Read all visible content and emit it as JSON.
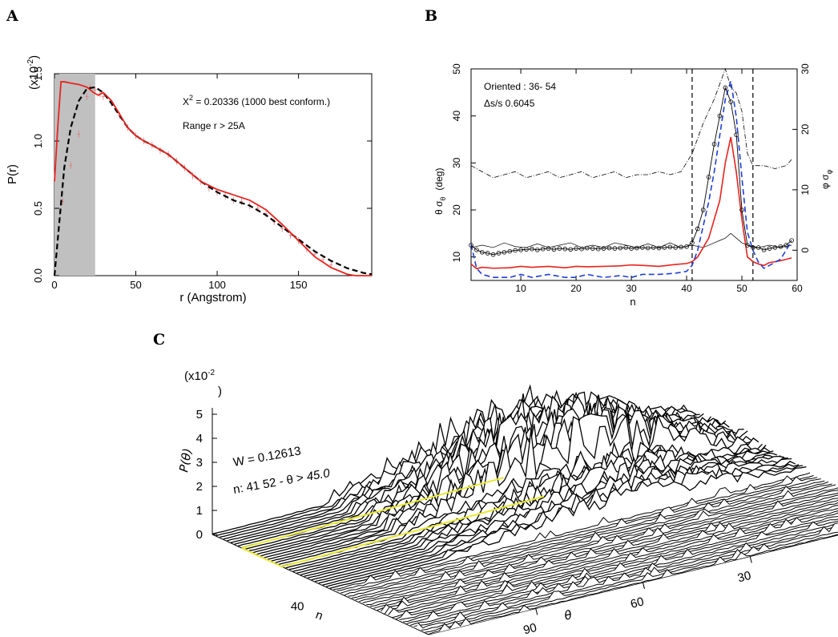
{
  "panels": {
    "A": {
      "letter": "A",
      "xlabel": "r (Angstrom)",
      "ylabel": "P(r)",
      "scale_prefix": "(x10",
      "scale_exp": "-2",
      "scale_suffix": ")",
      "chi_label": "X",
      "chi_exp": "2",
      "chi_value": " = 0.20336 (1000 best conform.)",
      "range_text": "Range r >  25A"
    },
    "B": {
      "letter": "B",
      "xlabel": "n",
      "ylabel_left": "θ  σ",
      "ylabel_left_sub": "θ",
      "ylabel_left_unit": "(deg)",
      "ylabel_right": "φ  σ",
      "ylabel_right_sub": "φ",
      "oriented_text": "Oriented :  36- 54",
      "ds_text": "Δs/s  0.6045"
    },
    "C": {
      "letter": "C",
      "zlabel": "P(θ)",
      "scale_prefix": "(x10",
      "scale_exp": "-2",
      "scale_suffix": ")",
      "w_text": "W = 0.12613",
      "n_text": "n:  41  52 - θ > ",
      "n_value": "45.0",
      "n_axis_label": "n",
      "theta_axis_label": "θ"
    }
  },
  "chart_data": [
    {
      "panel": "A",
      "type": "line",
      "xlabel": "r (Angstrom)",
      "ylabel": "P(r)",
      "xlim": [
        0,
        195
      ],
      "ylim": [
        0,
        1.5
      ],
      "xticks": [
        0,
        50,
        100,
        150
      ],
      "yticks": [
        0.0,
        0.5,
        1.0,
        1.5
      ],
      "shaded_region": [
        0,
        25
      ],
      "colors": {
        "model": "#e8231f",
        "fit": "#000000",
        "data": "#e07a7a",
        "shade": "#c0c0c0"
      },
      "series": [
        {
          "name": "model",
          "style": "solid-red",
          "x": [
            0,
            2,
            4,
            6,
            10,
            15,
            20,
            24,
            27,
            30,
            35,
            40,
            45,
            50,
            55,
            60,
            70,
            80,
            90,
            100,
            110,
            120,
            130,
            140,
            150,
            160,
            170,
            175,
            180,
            185,
            190,
            195
          ],
          "y": [
            0.7,
            1.1,
            1.44,
            1.44,
            1.43,
            1.42,
            1.4,
            1.36,
            1.34,
            1.36,
            1.3,
            1.2,
            1.1,
            1.04,
            1.0,
            0.97,
            0.9,
            0.8,
            0.7,
            0.64,
            0.6,
            0.56,
            0.49,
            0.38,
            0.26,
            0.14,
            0.06,
            0.035,
            0.01,
            0.0,
            0.0,
            0.0
          ]
        },
        {
          "name": "fit",
          "style": "dashed-black",
          "x": [
            0,
            3,
            6,
            10,
            15,
            20,
            25,
            30,
            35,
            40,
            45,
            50,
            55,
            60,
            70,
            80,
            90,
            100,
            110,
            120,
            130,
            140,
            150,
            160,
            170,
            180,
            190,
            195
          ],
          "y": [
            0.0,
            0.4,
            0.8,
            1.1,
            1.3,
            1.39,
            1.4,
            1.36,
            1.28,
            1.19,
            1.1,
            1.04,
            1.0,
            0.97,
            0.9,
            0.8,
            0.7,
            0.62,
            0.56,
            0.52,
            0.45,
            0.36,
            0.27,
            0.18,
            0.11,
            0.055,
            0.02,
            0.01
          ]
        },
        {
          "name": "data",
          "style": "red-errorbars",
          "x": [
            5,
            10,
            15,
            20,
            22,
            25,
            28,
            30,
            35,
            40,
            45,
            50,
            55,
            60,
            65,
            70,
            75,
            80,
            85,
            90,
            95,
            100,
            105,
            110,
            115,
            120,
            125,
            130,
            135,
            140,
            145,
            150,
            155,
            160,
            165,
            170
          ],
          "y": [
            0.55,
            0.82,
            1.05,
            1.33,
            1.4,
            1.38,
            1.35,
            1.33,
            1.28,
            1.19,
            1.1,
            1.04,
            1.0,
            0.97,
            0.93,
            0.9,
            0.85,
            0.8,
            0.74,
            0.7,
            0.65,
            0.62,
            0.59,
            0.56,
            0.55,
            0.52,
            0.5,
            0.46,
            0.4,
            0.35,
            0.3,
            0.26,
            0.2,
            0.16,
            0.12,
            0.08
          ]
        }
      ],
      "annotations": [
        "X2 = 0.20336 (1000 best conform.)",
        "Range r >  25A"
      ]
    },
    {
      "panel": "B",
      "type": "line",
      "xlabel": "n",
      "xlim": [
        1,
        60
      ],
      "ylim_left": [
        5,
        50
      ],
      "ylim_right": [
        -5,
        30
      ],
      "xticks": [
        10,
        20,
        30,
        40,
        50,
        60
      ],
      "yticks_left": [
        10,
        20,
        30,
        40,
        50
      ],
      "yticks_right": [
        0,
        10,
        20,
        30
      ],
      "vlines": [
        41,
        52
      ],
      "colors": {
        "theta_circles": "#000000",
        "sigma_theta": "#000000",
        "dashdot": "#000000",
        "red": "#e8231f",
        "blue_dashed": "#1f3fd6"
      },
      "series": [
        {
          "name": "theta-circles",
          "axis": "left",
          "x": [
            1,
            2,
            3,
            4,
            5,
            6,
            7,
            8,
            9,
            10,
            11,
            12,
            13,
            14,
            15,
            16,
            17,
            18,
            19,
            20,
            21,
            22,
            23,
            24,
            25,
            26,
            27,
            28,
            29,
            30,
            31,
            32,
            33,
            34,
            35,
            36,
            37,
            38,
            39,
            40,
            41,
            42,
            43,
            44,
            45,
            46,
            47,
            48,
            49,
            50,
            51,
            52,
            53,
            54,
            55,
            56,
            57,
            58,
            59
          ],
          "y": [
            12.5,
            11.5,
            11,
            10.8,
            10.5,
            10.8,
            11,
            11.2,
            11.4,
            11.5,
            11.6,
            11.7,
            11.5,
            11.7,
            11.8,
            11.6,
            11.8,
            11.7,
            11.6,
            11.8,
            11.7,
            11.9,
            11.8,
            11.7,
            11.8,
            11.9,
            11.8,
            11.9,
            12,
            11.8,
            11.9,
            12,
            11.9,
            12,
            11.9,
            12,
            12.1,
            12,
            12.1,
            12.2,
            13,
            16,
            20,
            27,
            34,
            40,
            46,
            43,
            36,
            20,
            12.5,
            12,
            12,
            11.5,
            11.8,
            12,
            12.2,
            12.5,
            13.5
          ]
        },
        {
          "name": "sigma-theta-thin",
          "axis": "left",
          "x": [
            1,
            3,
            5,
            7,
            9,
            11,
            13,
            15,
            17,
            19,
            21,
            23,
            25,
            27,
            29,
            31,
            33,
            35,
            37,
            39,
            41,
            43,
            45,
            46,
            47,
            48,
            49,
            50,
            51,
            53,
            55,
            57,
            59
          ],
          "y": [
            12,
            12.5,
            12,
            13,
            12.2,
            12,
            12.8,
            12,
            12.5,
            13,
            12,
            12.5,
            12,
            13,
            12.5,
            12,
            12.8,
            12,
            13,
            12,
            12.5,
            12,
            13,
            13.5,
            14,
            15,
            14,
            13,
            12.5,
            12,
            12.5,
            12,
            12.5
          ]
        },
        {
          "name": "dashdot",
          "axis": "right",
          "x": [
            1,
            3,
            5,
            7,
            9,
            11,
            13,
            15,
            17,
            19,
            21,
            23,
            25,
            27,
            29,
            31,
            33,
            35,
            37,
            39,
            41,
            43,
            45,
            47,
            48,
            49,
            50,
            51,
            52,
            54,
            56,
            58,
            59
          ],
          "y": [
            14,
            13,
            12,
            12.5,
            13,
            12,
            12.5,
            13,
            12,
            12.5,
            13,
            12,
            12.5,
            13,
            12,
            12.5,
            12.5,
            13,
            12.5,
            13,
            16,
            21,
            25,
            30,
            27,
            26,
            23,
            16,
            14,
            14,
            13.5,
            14,
            15
          ]
        },
        {
          "name": "red",
          "axis": "left",
          "x": [
            1,
            2,
            3,
            5,
            8,
            10,
            12,
            15,
            18,
            20,
            22,
            25,
            28,
            30,
            32,
            35,
            38,
            40,
            41,
            42,
            43,
            44,
            45,
            46,
            47,
            48,
            49,
            50,
            51,
            52,
            53,
            54,
            55,
            57,
            59
          ],
          "y": [
            8.5,
            7.5,
            7.8,
            7.6,
            7.7,
            8,
            7.8,
            8,
            7.7,
            8,
            7.9,
            8,
            8.1,
            8.3,
            8.2,
            8,
            8.4,
            8.6,
            9,
            10,
            12,
            14,
            18,
            22,
            30,
            35.5,
            28,
            18,
            10,
            9,
            8.5,
            8.2,
            8.8,
            9.2,
            9.8
          ]
        },
        {
          "name": "blue-dashed",
          "axis": "right",
          "x": [
            1,
            2,
            3,
            5,
            8,
            10,
            12,
            15,
            18,
            20,
            22,
            25,
            28,
            30,
            32,
            35,
            38,
            40,
            41,
            42,
            43,
            44,
            45,
            46,
            47,
            48,
            49,
            50,
            51,
            52,
            53,
            54,
            55,
            56,
            57,
            58,
            59
          ],
          "y": [
            1,
            -3,
            -4,
            -4.5,
            -4.5,
            -4,
            -4.5,
            -4,
            -4.5,
            -4.5,
            -4,
            -4.5,
            -4.2,
            -4.5,
            -4,
            -4,
            -3.8,
            -3.5,
            -2.5,
            0,
            4,
            8,
            13,
            19,
            25,
            28,
            22,
            12,
            3,
            0,
            -2,
            -3,
            -2.5,
            -2,
            -1.5,
            0,
            1.5
          ]
        }
      ],
      "annotations": [
        "Oriented :  36- 54",
        "Δs/s  0.6045"
      ]
    },
    {
      "panel": "C",
      "type": "area",
      "description_of_axes": [
        "n",
        "θ",
        "P(θ)"
      ],
      "zlim": [
        0,
        5
      ],
      "zticks": [
        0,
        1,
        2,
        3,
        4,
        5
      ],
      "n_ticks": [
        40
      ],
      "theta_ticks": [
        30,
        60,
        90
      ],
      "n_highlight": [
        41,
        52
      ],
      "theta_threshold": 45.0,
      "highlight_color": "#e8e830",
      "annotations": [
        "W = 0.12613",
        "n:  41  52 - θ > 45.0"
      ]
    }
  ]
}
